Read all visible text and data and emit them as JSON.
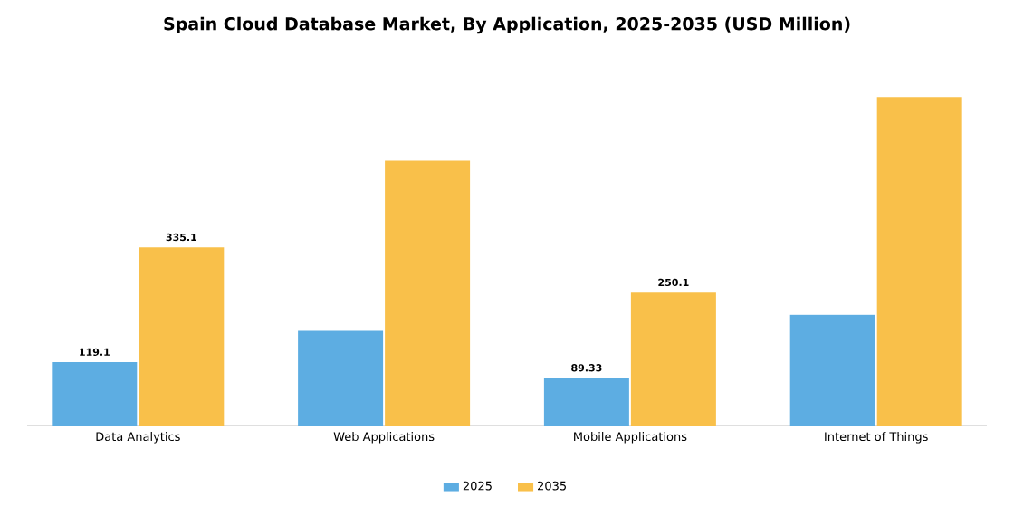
{
  "chart_data": {
    "type": "bar",
    "title": "Spain Cloud Database Market, By Application, 2025-2035 (USD Million)",
    "categories": [
      "Data Analytics",
      "Web Applications",
      "Mobile Applications",
      "Internet of Things"
    ],
    "series": [
      {
        "name": "2025",
        "color": "#5dade2",
        "values": [
          119.1,
          178,
          89.33,
          208
        ],
        "value_labels": [
          "119.1",
          null,
          "89.33",
          null
        ]
      },
      {
        "name": "2035",
        "color": "#f9c04a",
        "values": [
          335.1,
          498,
          250.1,
          618
        ],
        "value_labels": [
          "335.1",
          null,
          "250.1",
          null
        ]
      }
    ],
    "legend": "bottom"
  }
}
